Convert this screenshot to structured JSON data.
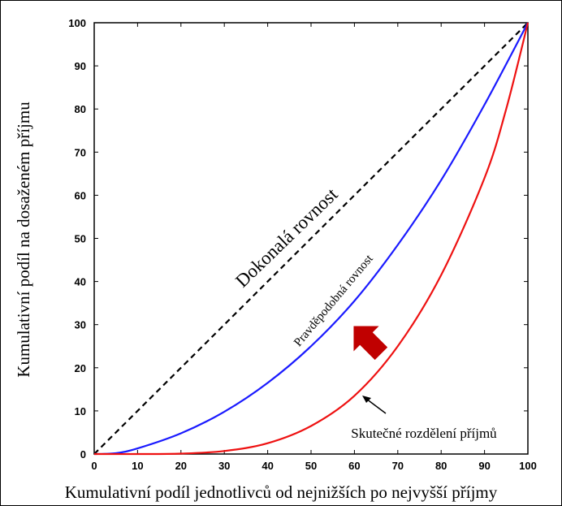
{
  "chart_data": {
    "type": "line",
    "xlabel": "Kumulativní podíl jednotlivců od nejnižších po nejvyšší příjmy",
    "ylabel": "Kumulativní podíl na dosaženém příjmu",
    "xlim": [
      0,
      100
    ],
    "ylim": [
      0,
      100
    ],
    "xticks": [
      0,
      10,
      20,
      30,
      40,
      50,
      60,
      70,
      80,
      90,
      100
    ],
    "yticks": [
      0,
      10,
      20,
      30,
      40,
      50,
      60,
      70,
      80,
      90,
      100
    ],
    "grid": false,
    "series": [
      {
        "name": "Dokonalá rovnost",
        "color": "#000000",
        "style": "dashed",
        "x": [
          0,
          100
        ],
        "y": [
          0,
          100
        ]
      },
      {
        "name": "Pravděpodobná rovnost",
        "color": "#1a1aff",
        "style": "solid",
        "x": [
          0,
          5,
          10,
          20,
          30,
          40,
          50,
          60,
          70,
          80,
          90,
          100
        ],
        "y": [
          0,
          0.2,
          1.3,
          4.8,
          9.8,
          16.5,
          25,
          35.5,
          48.5,
          63.5,
          81,
          100
        ]
      },
      {
        "name": "Skutečné rozdělení příjmů",
        "color": "#ee1111",
        "style": "solid",
        "x": [
          0,
          10,
          20,
          30,
          40,
          50,
          60,
          70,
          80,
          90,
          95,
          100
        ],
        "y": [
          0,
          0,
          0.1,
          0.7,
          2.5,
          6.5,
          13.5,
          25,
          41.5,
          64,
          80,
          100
        ]
      }
    ],
    "annotations": {
      "equality_label": "Dokonalá rovnost",
      "probable_label": "Pravděpodobná rovnost",
      "actual_label": "Skutečné rozdělení příjmů"
    },
    "arrow_color": "#c00000"
  }
}
